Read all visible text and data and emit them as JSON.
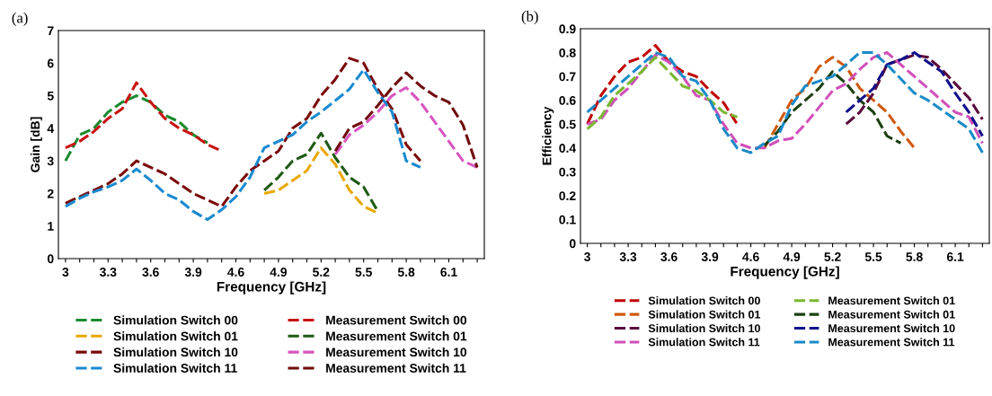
{
  "chart_data": [
    {
      "type": "line",
      "title": "(a)",
      "xlabel": "Frequency [GHz]",
      "ylabel": "Gain [dB]",
      "ylim": [
        0,
        7
      ],
      "yticks": [
        0,
        1,
        2,
        3,
        4,
        5,
        6,
        7
      ],
      "legend": "bottom",
      "grid": false,
      "line_style": "dashed",
      "marker": "none",
      "categories": [
        "3",
        null,
        null,
        "3.3",
        null,
        null,
        "3.6",
        null,
        null,
        "3.9",
        null,
        null,
        "4.6",
        null,
        null,
        "4.9",
        null,
        null,
        "5.2",
        null,
        null,
        "5.5",
        null,
        null,
        "5.8",
        null,
        null,
        "6.1",
        null,
        null
      ],
      "series": [
        {
          "name": "Simulation Switch 00",
          "color": "#1a8a2e",
          "values": [
            3.0,
            3.8,
            4.0,
            4.5,
            4.8,
            5.0,
            4.8,
            4.4,
            4.2,
            3.8,
            3.55,
            null,
            null,
            null,
            null,
            null,
            null,
            null,
            null,
            null,
            null,
            null,
            null,
            null,
            null,
            null,
            null,
            null,
            null,
            null
          ]
        },
        {
          "name": "Simulation Switch 01",
          "color": "#e8a800",
          "values": [
            null,
            null,
            null,
            null,
            null,
            null,
            null,
            null,
            null,
            null,
            null,
            null,
            null,
            null,
            2.0,
            2.1,
            2.4,
            2.7,
            3.4,
            2.9,
            2.1,
            1.6,
            1.4,
            null,
            null,
            null,
            null,
            null,
            null,
            null
          ]
        },
        {
          "name": "Simulation Switch 10",
          "color": "#7a0a0a",
          "values": [
            1.7,
            1.9,
            2.1,
            2.3,
            2.6,
            3.0,
            2.8,
            2.6,
            2.3,
            2.0,
            1.8,
            1.6,
            2.2,
            2.7,
            3.0,
            3.3,
            4.0,
            4.3,
            5.0,
            5.5,
            6.15,
            6.0,
            5.2,
            4.6,
            3.5,
            3.0,
            null,
            null,
            null,
            null
          ]
        },
        {
          "name": "Simulation Switch 11",
          "color": "#1a8ad0",
          "values": [
            1.6,
            1.85,
            2.05,
            2.2,
            2.4,
            2.75,
            2.4,
            2.0,
            1.8,
            1.45,
            1.2,
            1.5,
            1.9,
            2.5,
            3.4,
            3.6,
            3.8,
            4.2,
            4.5,
            4.85,
            5.2,
            5.8,
            5.1,
            4.5,
            3.0,
            2.8,
            null,
            null,
            null,
            null
          ]
        },
        {
          "name": "Measurement Switch 00",
          "color": "#c81414",
          "values": [
            3.4,
            3.6,
            3.9,
            4.3,
            4.6,
            5.4,
            4.8,
            4.3,
            4.0,
            3.8,
            3.5,
            3.3,
            null,
            null,
            null,
            null,
            null,
            null,
            null,
            null,
            null,
            null,
            null,
            null,
            null,
            null,
            null,
            null,
            null,
            null
          ]
        },
        {
          "name": "Measurement Switch 01",
          "color": "#1e5a14",
          "values": [
            null,
            null,
            null,
            null,
            null,
            null,
            null,
            null,
            null,
            null,
            null,
            null,
            null,
            null,
            2.1,
            2.5,
            3.0,
            3.2,
            3.85,
            3.1,
            2.5,
            2.2,
            1.45,
            null,
            null,
            null,
            null,
            null,
            null,
            null
          ]
        },
        {
          "name": "Measurement Switch 10",
          "color": "#d855c0",
          "values": [
            null,
            null,
            null,
            null,
            null,
            null,
            null,
            null,
            null,
            null,
            null,
            null,
            null,
            null,
            null,
            null,
            null,
            null,
            null,
            3.2,
            3.8,
            4.1,
            4.5,
            5.0,
            5.25,
            4.8,
            4.2,
            3.6,
            3.0,
            2.8
          ]
        },
        {
          "name": "Measurement Switch 11",
          "color": "#6e0c0c",
          "values": [
            null,
            null,
            null,
            null,
            null,
            null,
            null,
            null,
            null,
            null,
            null,
            null,
            null,
            null,
            null,
            null,
            null,
            null,
            null,
            3.3,
            4.0,
            4.2,
            4.7,
            5.25,
            5.7,
            5.3,
            5.0,
            4.8,
            4.1,
            2.8
          ]
        }
      ]
    },
    {
      "type": "line",
      "title": "(b)",
      "xlabel": "Frequency [GHz]",
      "ylabel": "Efficiency",
      "ylim": [
        0,
        0.9
      ],
      "yticks": [
        0,
        0.1,
        0.2,
        0.3,
        0.4,
        0.5,
        0.6,
        0.7,
        0.8,
        0.9
      ],
      "legend": "bottom",
      "grid": false,
      "line_style": "dashed",
      "marker": "none",
      "categories": [
        "3",
        null,
        null,
        "3.3",
        null,
        null,
        "3.6",
        null,
        null,
        "3.9",
        null,
        null,
        "4.6",
        null,
        null,
        "4.9",
        null,
        null,
        "5.2",
        null,
        null,
        "5.5",
        null,
        null,
        "5.8",
        null,
        null,
        "6.1",
        null,
        null
      ],
      "series": [
        {
          "name": "Simulation Switch 00",
          "color": "#c00000",
          "values": [
            0.5,
            0.62,
            0.7,
            0.76,
            0.78,
            0.83,
            0.76,
            0.72,
            0.7,
            0.64,
            0.59,
            0.5,
            null,
            null,
            null,
            null,
            null,
            null,
            null,
            null,
            null,
            null,
            null,
            null,
            null,
            null,
            null,
            null,
            null,
            null
          ]
        },
        {
          "name": "Simulation Switch 01",
          "color": "#d05a10",
          "values": [
            null,
            null,
            null,
            null,
            null,
            null,
            null,
            null,
            null,
            null,
            null,
            null,
            null,
            0.4,
            0.5,
            0.6,
            0.65,
            0.74,
            0.78,
            0.74,
            0.65,
            0.6,
            0.55,
            0.47,
            0.4,
            null,
            null,
            null,
            null,
            null
          ]
        },
        {
          "name": "Simulation Switch 10",
          "color": "#5a0a3c",
          "values": [
            null,
            null,
            null,
            null,
            null,
            null,
            null,
            null,
            null,
            null,
            null,
            null,
            null,
            null,
            null,
            null,
            null,
            null,
            null,
            0.5,
            0.55,
            0.63,
            0.75,
            0.77,
            0.79,
            0.78,
            0.73,
            0.67,
            0.61,
            0.52
          ]
        },
        {
          "name": "Simulation Switch 11",
          "color": "#d050b8",
          "values": [
            0.5,
            0.52,
            0.6,
            0.65,
            0.72,
            0.79,
            0.76,
            0.7,
            0.62,
            0.6,
            0.5,
            0.42,
            0.4,
            0.4,
            0.43,
            0.44,
            0.5,
            0.57,
            0.64,
            0.67,
            0.73,
            0.78,
            0.8,
            0.75,
            0.7,
            0.65,
            0.6,
            0.55,
            0.53,
            0.42
          ]
        },
        {
          "name": "Measurement Switch 01",
          "color": "#7ab830",
          "values": [
            0.48,
            0.53,
            0.62,
            0.67,
            0.72,
            0.78,
            0.72,
            0.66,
            0.64,
            0.6,
            0.55,
            0.53,
            null,
            null,
            null,
            null,
            null,
            null,
            null,
            null,
            null,
            null,
            null,
            null,
            null,
            null,
            null,
            null,
            null,
            null
          ]
        },
        {
          "name": "Measurement Switch 01",
          "color": "#1a4010",
          "values": [
            null,
            null,
            null,
            null,
            null,
            null,
            null,
            null,
            null,
            null,
            null,
            null,
            null,
            0.41,
            0.47,
            0.55,
            0.6,
            0.65,
            0.72,
            0.67,
            0.6,
            0.55,
            0.45,
            0.42,
            null,
            null,
            null,
            null,
            null,
            null
          ]
        },
        {
          "name": "Measurement Switch 10",
          "color": "#10108a",
          "values": [
            null,
            null,
            null,
            null,
            null,
            null,
            null,
            null,
            null,
            null,
            null,
            null,
            null,
            null,
            null,
            null,
            null,
            null,
            null,
            0.55,
            0.6,
            0.65,
            0.75,
            0.77,
            0.8,
            0.76,
            0.72,
            0.63,
            0.55,
            0.45
          ]
        },
        {
          "name": "Measurement Switch 11",
          "color": "#1a8ac8",
          "values": [
            0.55,
            0.6,
            0.65,
            0.7,
            0.75,
            0.8,
            0.78,
            0.7,
            0.68,
            0.6,
            0.48,
            0.4,
            0.38,
            0.42,
            0.45,
            0.58,
            0.66,
            0.68,
            0.7,
            0.75,
            0.8,
            0.8,
            0.75,
            0.69,
            0.63,
            0.6,
            0.56,
            0.52,
            0.48,
            0.38
          ]
        }
      ]
    }
  ]
}
